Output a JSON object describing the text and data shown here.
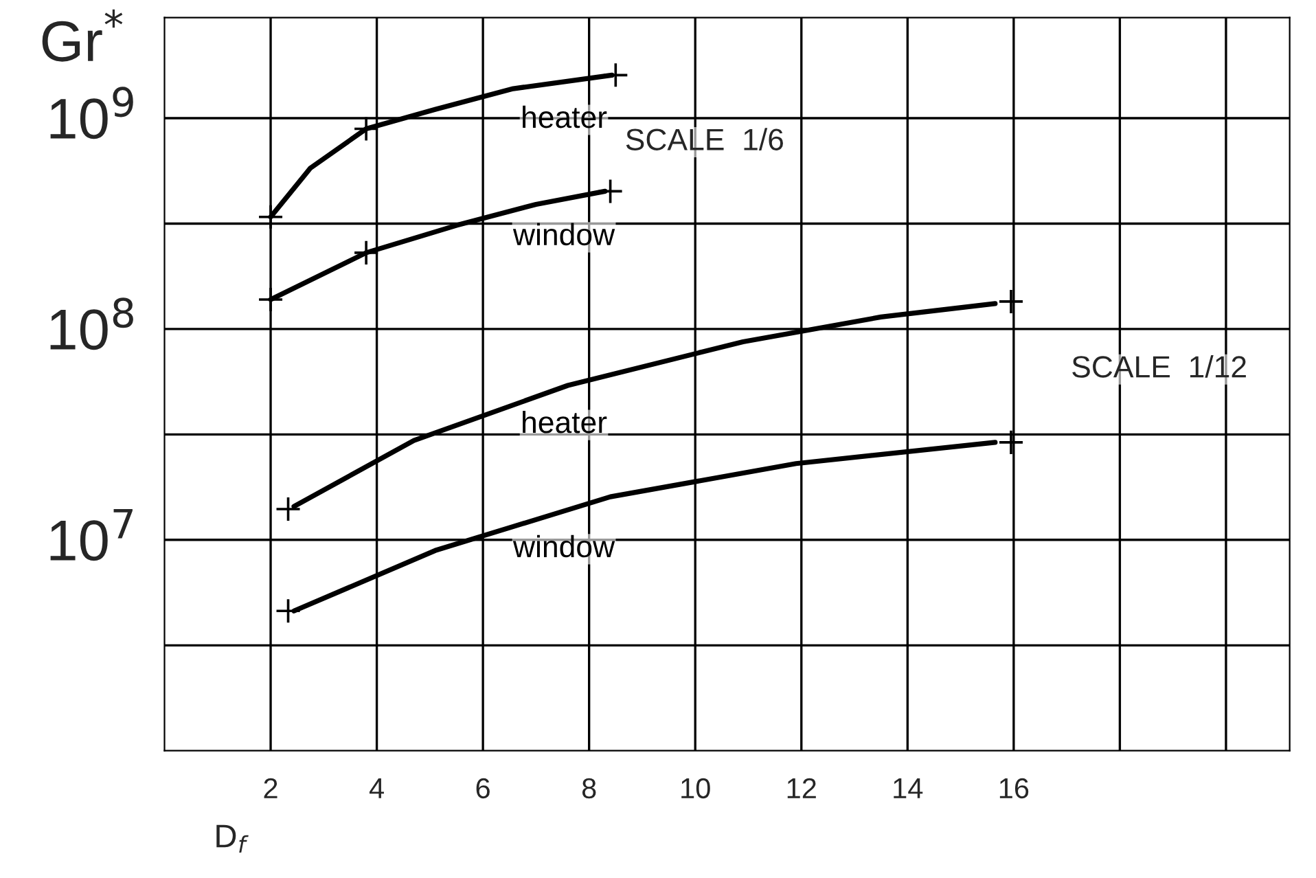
{
  "chart_data": {
    "type": "line",
    "ylabel": "Gr$^{*}$",
    "xlabel": "D$_{f}$",
    "log": "y",
    "grid": true,
    "line_style": "solid",
    "marker": "none",
    "xlim": [
      0,
      21.2
    ],
    "ylim": [
      1000000,
      3000000000
    ],
    "xticks": [
      2,
      4,
      6,
      8,
      10,
      12,
      14,
      16,
      {
        "value": 18,
        "label": null
      },
      {
        "value": 20,
        "label": null
      }
    ],
    "yticks": [
      {
        "value": 3160000,
        "label": null
      },
      {
        "value": 10000000,
        "label": "10$^{7}$"
      },
      {
        "value": 31600000,
        "label": null
      },
      {
        "value": 100000000,
        "label": "10$^{8}$"
      },
      {
        "value": 316000000,
        "label": null
      },
      {
        "value": 1000000000,
        "label": "10$^{9}$"
      }
    ],
    "series": [
      {
        "name": "heater",
        "color": "#000000",
        "x": [
          2.0,
          2.75,
          3.8,
          5.1,
          6.57,
          8.43
        ],
        "values": [
          340000000,
          580000000,
          890000000,
          1100000000,
          1380000000,
          1600000000
        ]
      },
      {
        "name": "window",
        "color": "#000000",
        "x": [
          2.0,
          3.8,
          5.5,
          7.0,
          8.3
        ],
        "values": [
          138000000,
          230000000,
          310000000,
          390000000,
          450000000
        ]
      },
      {
        "name": "heater",
        "color": "#000000",
        "x": [
          2.44,
          4.7,
          7.6,
          10.9,
          13.5,
          15.65
        ],
        "values": [
          14400000,
          29600000,
          54000000,
          87000000,
          114000000,
          132000000
        ]
      },
      {
        "name": "window",
        "color": "#000000",
        "x": [
          2.44,
          5.1,
          8.4,
          11.9,
          15.65
        ],
        "values": [
          4600000,
          8900000,
          16000000,
          23000000,
          29000000
        ]
      },
      {
        "type": "scatter",
        "marker": "cross",
        "color": "#000000",
        "x": [
          2.0,
          3.8,
          8.5,
          2.0,
          3.8,
          8.4,
          2.33,
          15.95,
          2.33,
          15.95
        ],
        "values": [
          340000000,
          890000000,
          1600000000,
          138000000,
          230000000,
          450000000,
          14000000,
          135000000,
          4600000,
          29000000
        ]
      }
    ],
    "annotations": [
      "SCALE  1/6",
      "SCALE  1/12"
    ]
  }
}
